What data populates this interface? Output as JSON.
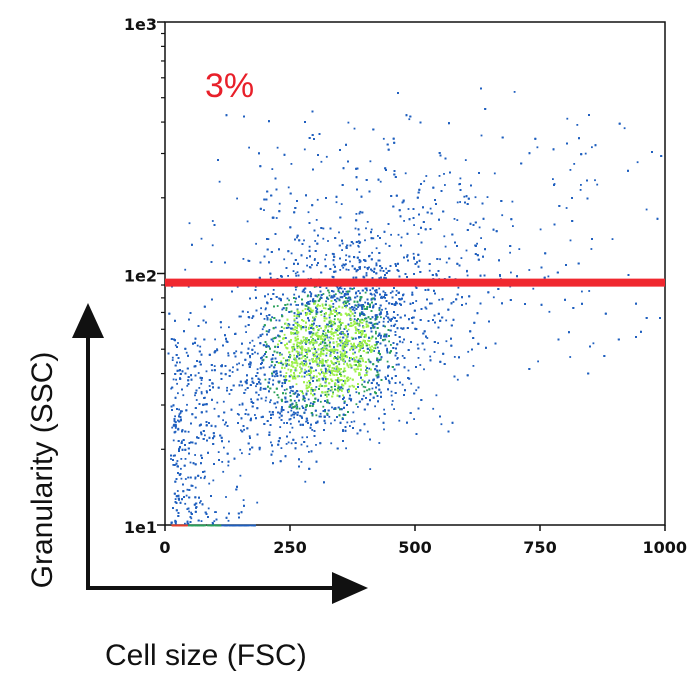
{
  "chart_data": {
    "type": "scatter",
    "title": "",
    "xlabel": "Cell size (FSC)",
    "ylabel": "Granularity (SSC)",
    "xlim": [
      0,
      1000
    ],
    "ylim": [
      10,
      1000
    ],
    "y_scale": "log",
    "x_ticks": [
      0,
      250,
      500,
      750,
      1000
    ],
    "x_tick_labels": [
      "0",
      "250",
      "500",
      "750",
      "1000"
    ],
    "y_ticks": [
      10,
      100,
      1000
    ],
    "y_tick_labels": [
      "1e1",
      "1e2",
      "1e3"
    ],
    "grid": false,
    "legend": "none",
    "annotation": "3%",
    "threshold_line": {
      "y": 92
    },
    "distribution": {
      "description": "density scatter of cell events",
      "center": {
        "x": 320,
        "y": 50
      },
      "points_approx": 9000
    },
    "colors": {
      "point_low": "#1f5fbf",
      "point_mid": "#2aa05a",
      "point_high": "#9df04a",
      "threshold": "#f0282f",
      "annotation": "#e8202a",
      "axis": "#111111",
      "arrow": "#111111"
    }
  }
}
